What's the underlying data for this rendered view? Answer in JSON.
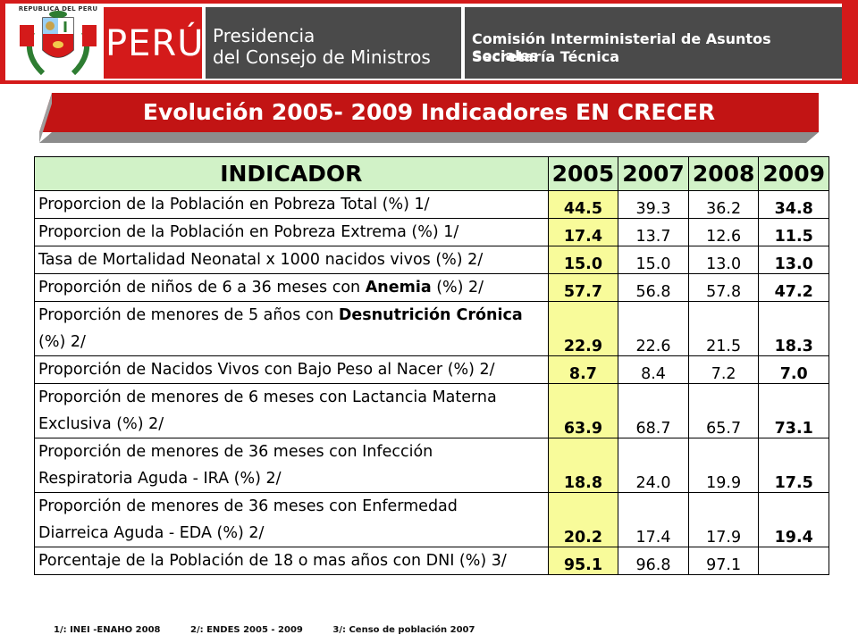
{
  "header": {
    "crest_caption": "REPUBLICA DEL PERU",
    "country": "PERÚ",
    "pcm_line1": "Presidencia",
    "pcm_line2": "del Consejo de Ministros",
    "cias_line1": "Comisión Interministerial de Asuntos Sociales",
    "cias_line2": "Secretaría Técnica"
  },
  "title": "Evolución 2005- 2009 Indicadores  EN CRECER",
  "table": {
    "headers": [
      "INDICADOR",
      "2005",
      "2007",
      "2008",
      "2009"
    ],
    "rows": [
      {
        "label": "Proporcion de la Población en Pobreza Total (%)    1/",
        "v2005": "44.5",
        "v2007": "39.3",
        "v2008": "36.2",
        "v2009": "34.8"
      },
      {
        "label": "Proporcion de la Población en Pobreza Extrema (%)    1/",
        "v2005": "17.4",
        "v2007": "13.7",
        "v2008": "12.6",
        "v2009": "11.5"
      },
      {
        "label": "Tasa de Mortalidad Neonatal x 1000 nacidos vivos  (%)  2/",
        "v2005": "15.0",
        "v2007": "15.0",
        "v2008": "13.0",
        "v2009": "13.0"
      },
      {
        "label_pre": "Proporción de niños de 6 a 36 meses con ",
        "label_bold": "Anemia",
        "label_post": " (%)  2/",
        "v2005": "57.7",
        "v2007": "56.8",
        "v2008": "57.8",
        "v2009": "47.2"
      },
      {
        "label_pre": "Proporción de menores de 5 años con ",
        "label_bold": "Desnutrición Crónica",
        "label_post": "(%)   2/",
        "v2005": "22.9",
        "v2007": "22.6",
        "v2008": "21.5",
        "v2009": "18.3"
      },
      {
        "label": "Proporción de Nacidos Vivos con Bajo Peso al Nacer (%)  2/",
        "v2005": "8.7",
        "v2007": "8.4",
        "v2008": "7.2",
        "v2009": "7.0"
      },
      {
        "label_line1": "Proporción de menores de 6 meses con Lactancia Materna",
        "label_line2": "Exclusiva (%)   2/",
        "v2005": "63.9",
        "v2007": "68.7",
        "v2008": "65.7",
        "v2009": "73.1"
      },
      {
        "label_line1": "Proporción de menores de 36 meses con Infección",
        "label_line2": "Respiratoria Aguda - IRA (%)    2/",
        "v2005": "18.8",
        "v2007": "24.0",
        "v2008": "19.9",
        "v2009": "17.5"
      },
      {
        "label_line1": "Proporción de menores de 36 meses con Enfermedad",
        "label_line2": "Diarreica Aguda - EDA (%)    2/",
        "v2005": "20.2",
        "v2007": "17.4",
        "v2008": "17.9",
        "v2009": "19.4"
      },
      {
        "label": "Porcentaje de la Población de 18 o mas años con DNI (%)  3/",
        "v2005": "95.1",
        "v2007": "96.8",
        "v2008": "97.1",
        "v2009": ""
      }
    ]
  },
  "footnotes": [
    "1/:  INEI -ENAHO  2008",
    "2/:  ENDES 2005 - 2009",
    "3/:  Censo  de población 2007"
  ],
  "colors": {
    "accent_red": "#d41a1a",
    "header_gray": "#4a4a4a",
    "header_green": "#d1f2c7",
    "highlight_yellow": "#f8fb9a"
  }
}
